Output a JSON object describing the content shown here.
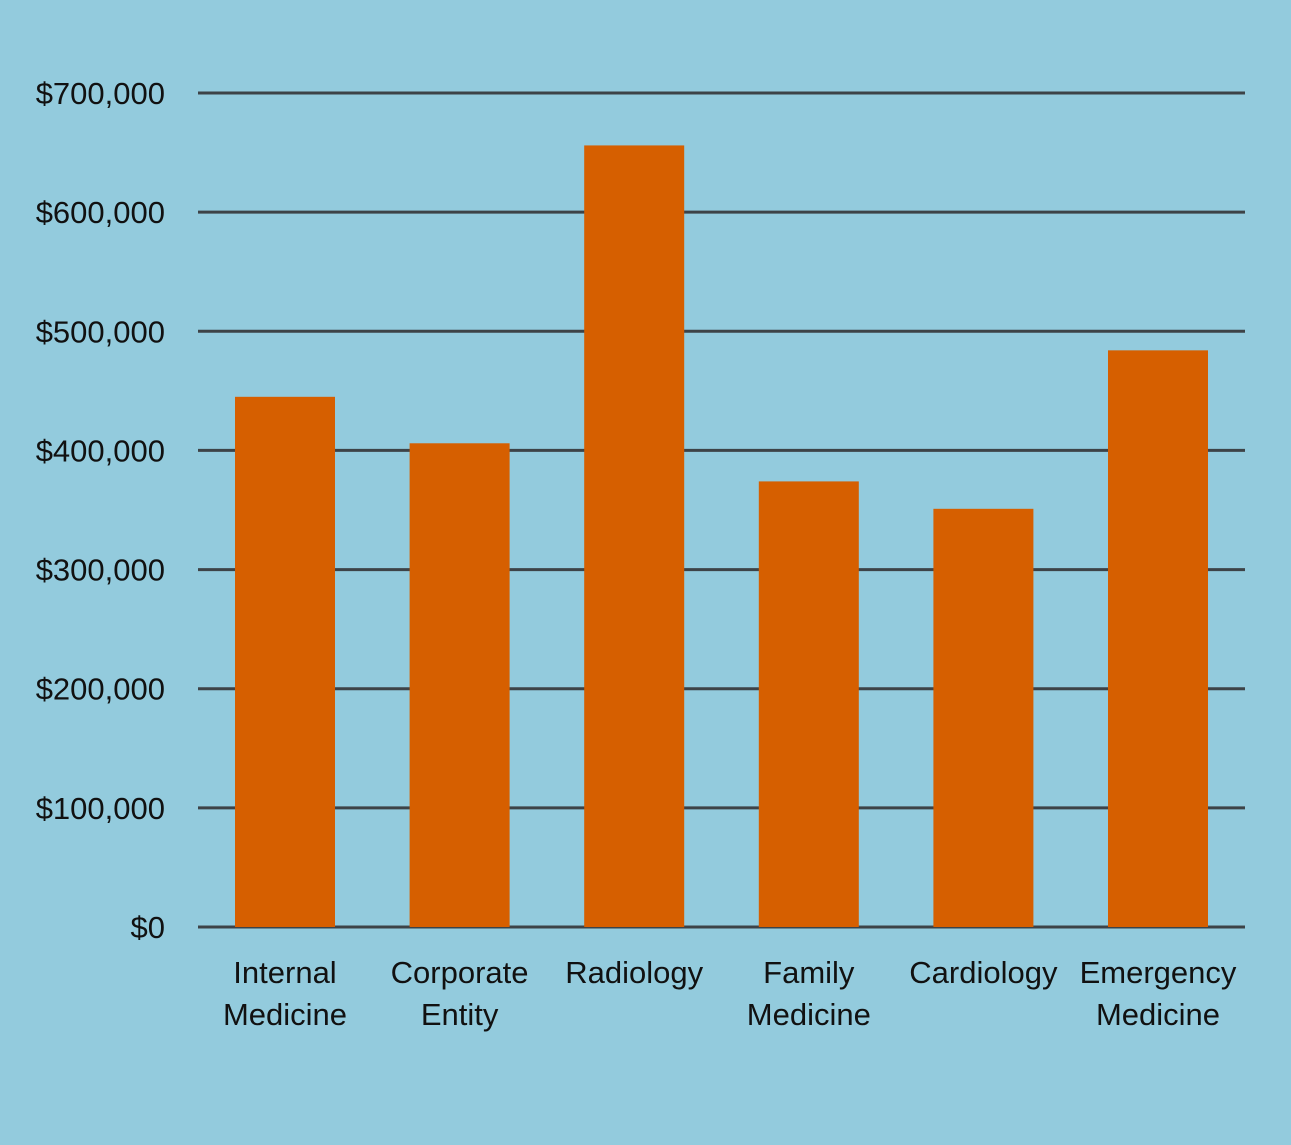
{
  "chart_data": {
    "type": "bar",
    "categories": [
      [
        "Internal",
        "Medicine"
      ],
      [
        "Corporate",
        "Entity"
      ],
      [
        "Radiology"
      ],
      [
        "Family",
        "Medicine"
      ],
      [
        "Cardiology"
      ],
      [
        "Emergency",
        "Medicine"
      ]
    ],
    "values": [
      445000,
      406000,
      656000,
      374000,
      351000,
      484000
    ],
    "ylim": [
      0,
      700000
    ],
    "yticks": [
      0,
      100000,
      200000,
      300000,
      400000,
      500000,
      600000,
      700000
    ],
    "ytick_labels": [
      "$0",
      "$100,000",
      "$200,000",
      "$300,000",
      "$400,000",
      "$500,000",
      "$600,000",
      "$700,000"
    ],
    "title": "",
    "xlabel": "",
    "ylabel": "",
    "grid": "horizontal",
    "legend": "none",
    "colors": {
      "background": "#93cbdd",
      "bar": "#d65f00",
      "grid": "#3d4347",
      "text": "#111111"
    }
  }
}
